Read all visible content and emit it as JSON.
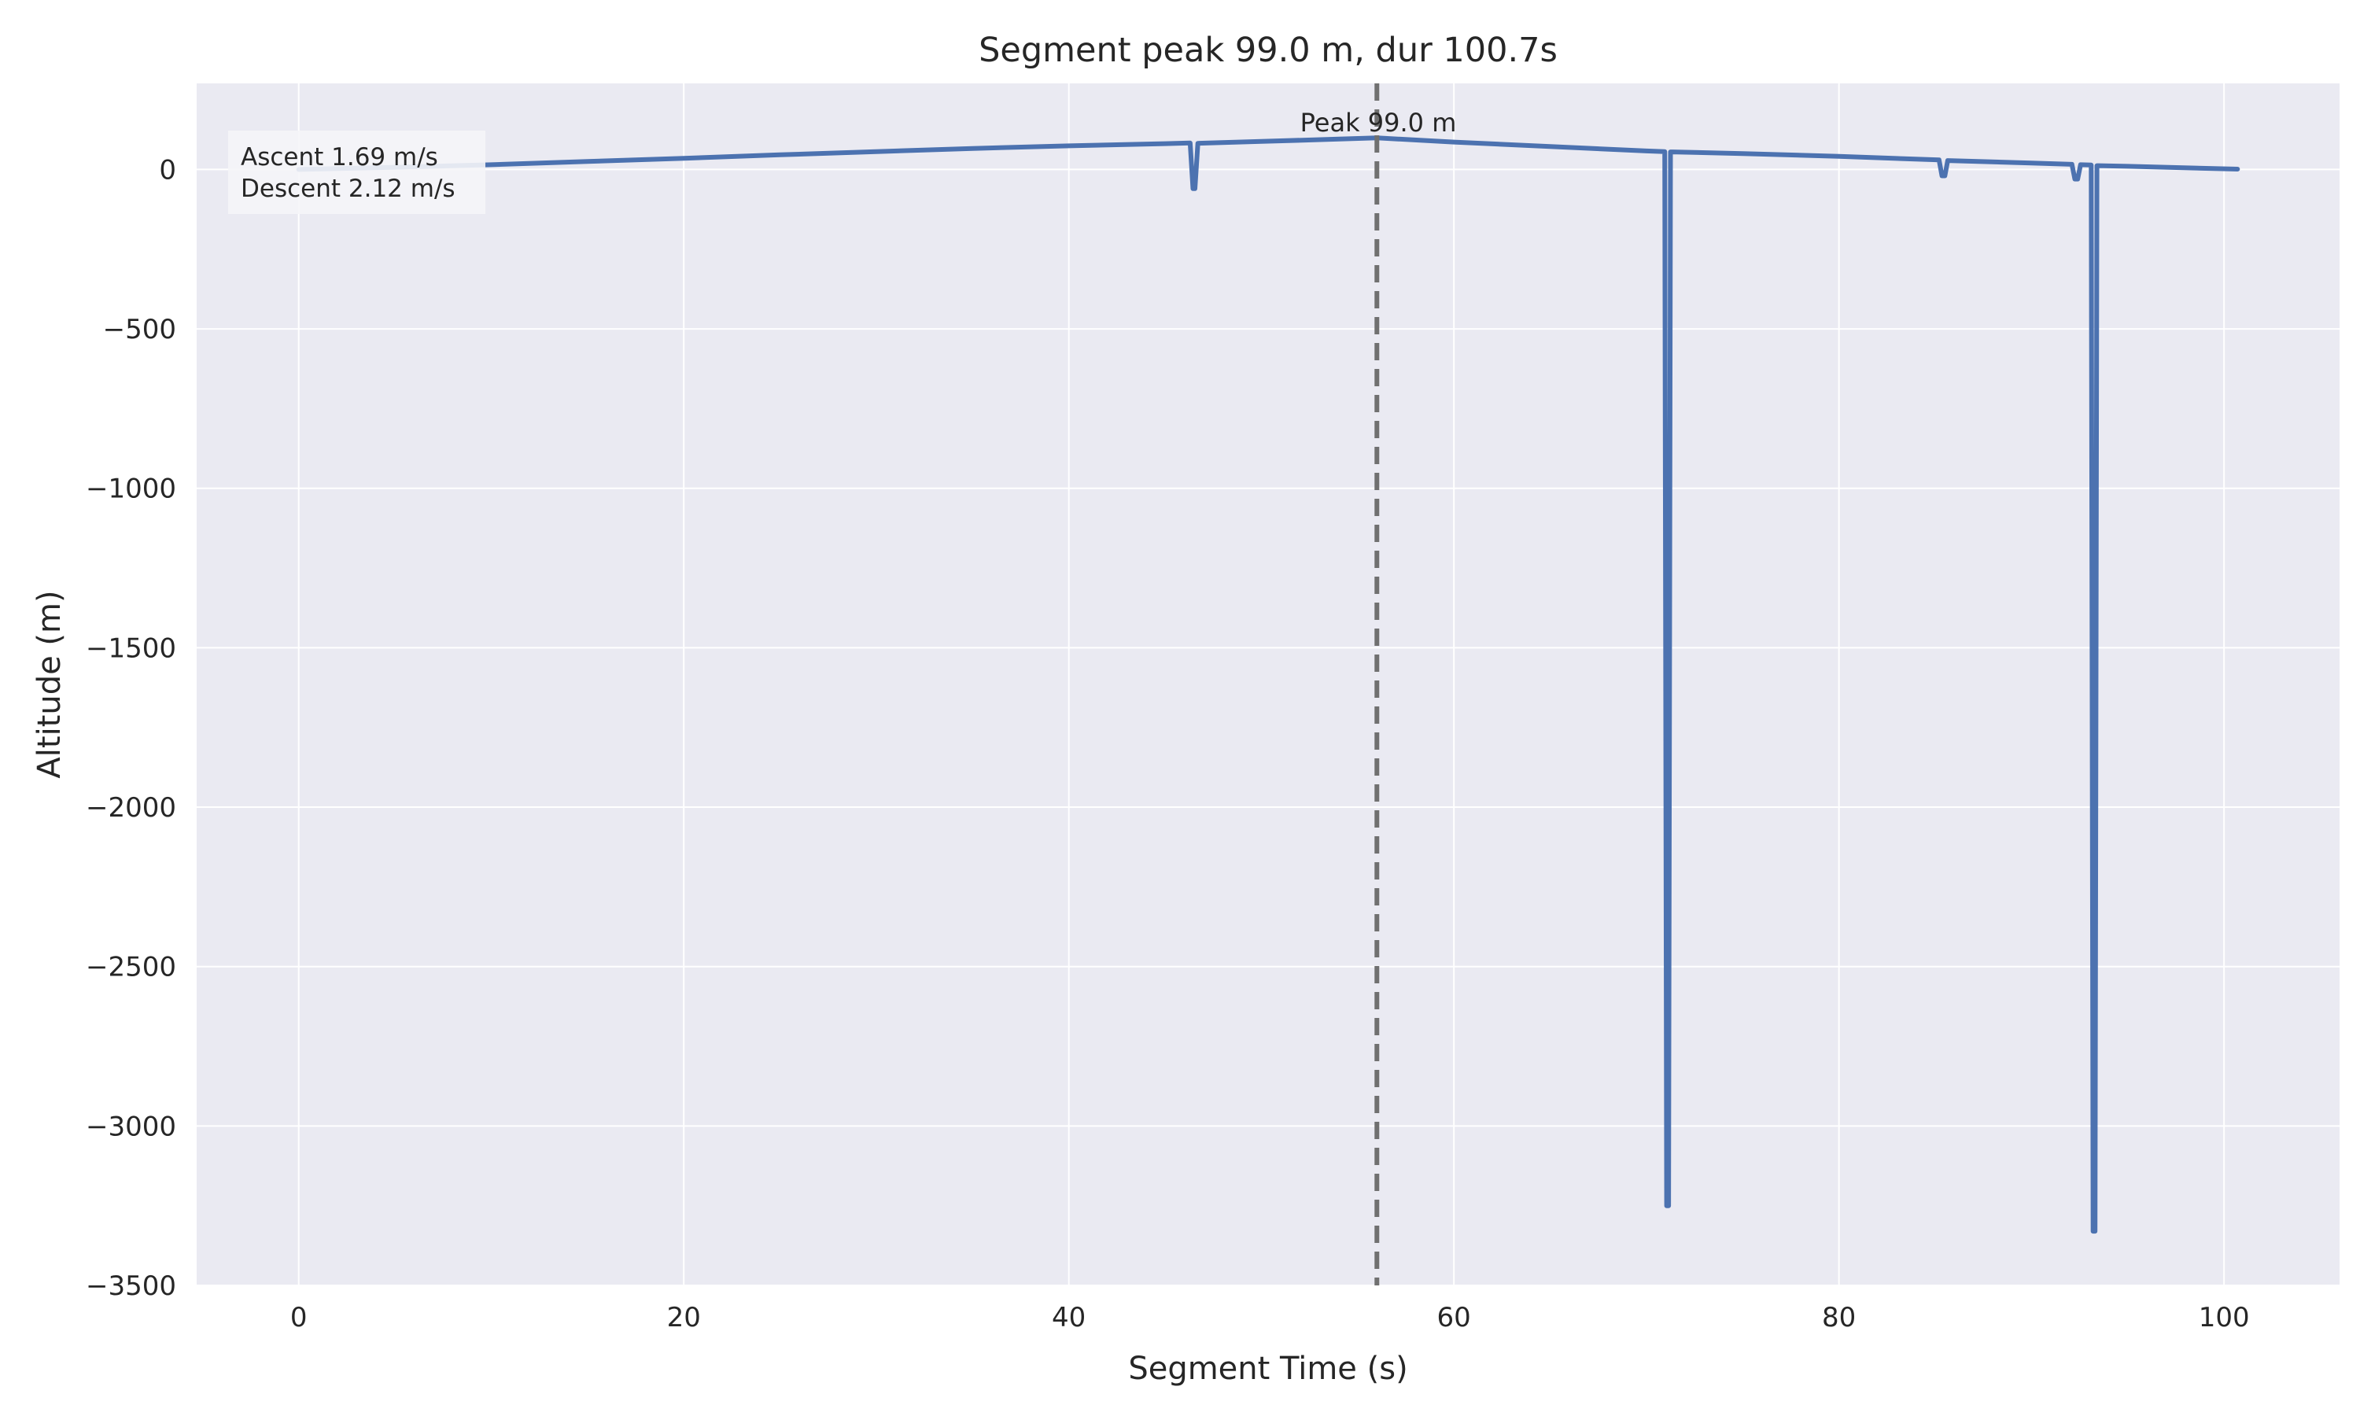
{
  "chart_data": {
    "type": "line",
    "title": "Segment peak 99.0 m, dur 100.7s",
    "xlabel": "Segment Time (s)",
    "ylabel": "Altitude (m)",
    "xlim": [
      -5.3,
      106
    ],
    "ylim": [
      -3500,
      270
    ],
    "xticks": [
      0,
      20,
      40,
      60,
      80,
      100
    ],
    "yticks": [
      0,
      -500,
      -1000,
      -1500,
      -2000,
      -2500,
      -3000,
      -3500
    ],
    "xtick_labels": [
      "0",
      "20",
      "40",
      "60",
      "80",
      "100"
    ],
    "ytick_labels": [
      "0",
      "−500",
      "−1000",
      "−1500",
      "−2000",
      "−2500",
      "−3000",
      "−3500"
    ],
    "grid": true,
    "series": [
      {
        "color": "#4c72b0",
        "x": [
          0,
          5,
          10,
          15,
          20,
          25,
          30,
          35,
          40,
          45,
          46.3,
          46.45,
          46.55,
          46.7,
          50,
          56,
          60,
          65,
          70,
          70.95,
          71.05,
          71.15,
          71.25,
          71.35,
          75,
          80,
          85.2,
          85.35,
          85.5,
          85.65,
          90,
          92.1,
          92.25,
          92.4,
          92.55,
          93.1,
          93.2,
          93.3,
          93.4,
          93.5,
          95,
          100.7
        ],
        "y": [
          0,
          7,
          15,
          25,
          35,
          46,
          56,
          66,
          74,
          81,
          83,
          -60,
          -60,
          82,
          88,
          99,
          86,
          72,
          58,
          56,
          -3250,
          -3250,
          55,
          55,
          50,
          41,
          30,
          -20,
          -20,
          28,
          20,
          16,
          -30,
          -30,
          15,
          14,
          -3330,
          -3330,
          12,
          12,
          10,
          1
        ]
      }
    ],
    "vline": {
      "x": 56,
      "color": "#707070",
      "style": "dashed"
    },
    "annotations": [
      {
        "text": "Peak 99.0 m",
        "x": 56,
        "y": 99
      }
    ],
    "stats_box": {
      "lines": [
        "Ascent 1.69 m/s",
        "Descent 2.12 m/s"
      ],
      "placement": "top-left"
    }
  }
}
